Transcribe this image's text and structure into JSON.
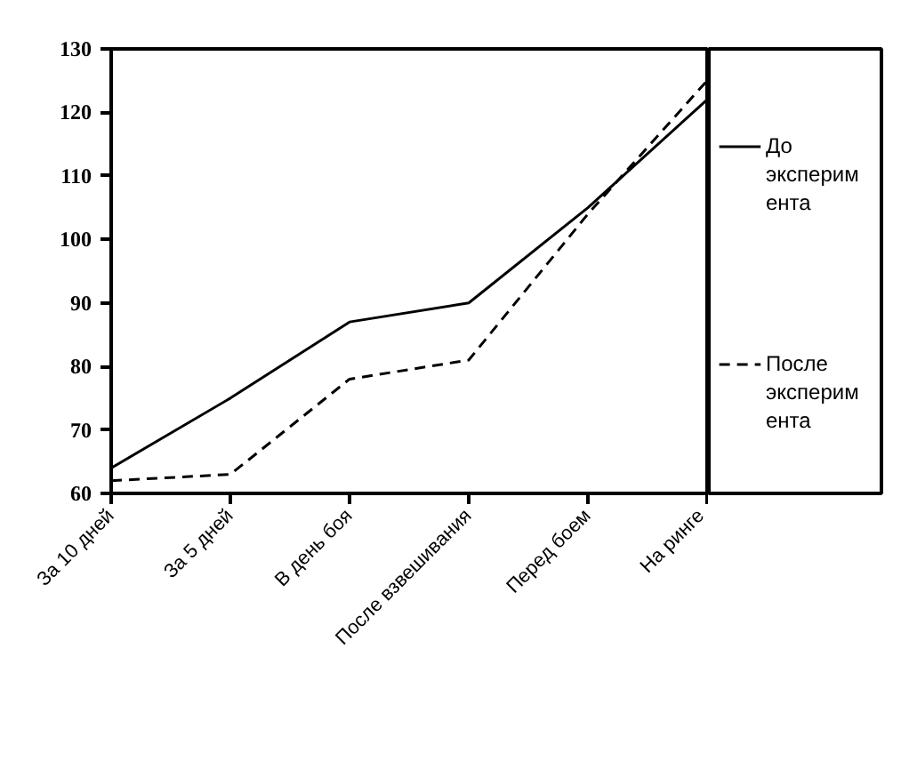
{
  "chart_data": {
    "type": "line",
    "categories": [
      "За 10 дней",
      "За 5 дней",
      "В день боя",
      "После взвешивания",
      "Перед боем",
      "На ринге"
    ],
    "series": [
      {
        "name": "До эксперимента",
        "color": "#000000",
        "line_style": "solid",
        "values": [
          64,
          75,
          87,
          90,
          105,
          122
        ]
      },
      {
        "name": "После эксперимента",
        "color": "#000000",
        "line_style": "dashed",
        "values": [
          62,
          63,
          78,
          81,
          104,
          125
        ]
      }
    ],
    "ylim": [
      60,
      130
    ],
    "yticks": [
      60,
      70,
      80,
      90,
      100,
      110,
      120,
      130
    ],
    "grid": false,
    "legend": "right",
    "marker": "none"
  }
}
